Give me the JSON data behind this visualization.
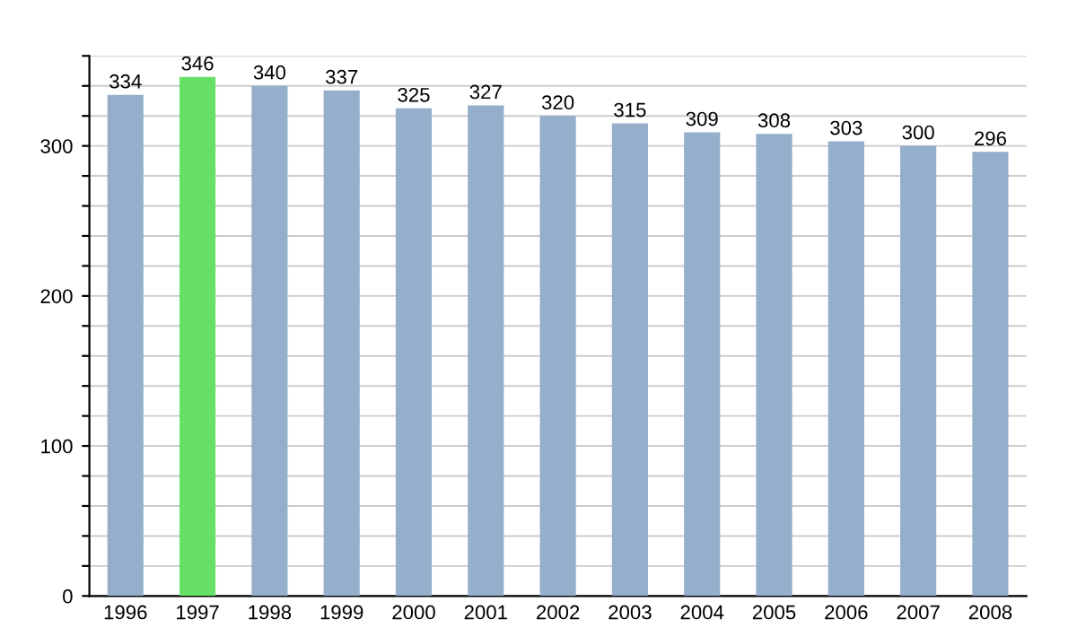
{
  "chart_data": {
    "type": "bar",
    "categories": [
      "1996",
      "1997",
      "1998",
      "1999",
      "2000",
      "2001",
      "2002",
      "2003",
      "2004",
      "2005",
      "2006",
      "2007",
      "2008"
    ],
    "values": [
      334,
      346,
      340,
      337,
      325,
      327,
      320,
      315,
      309,
      308,
      303,
      300,
      296
    ],
    "colors": [
      "#94aecb",
      "#66e066",
      "#94aecb",
      "#94aecb",
      "#94aecb",
      "#94aecb",
      "#94aecb",
      "#94aecb",
      "#94aecb",
      "#94aecb",
      "#94aecb",
      "#94aecb",
      "#94aecb"
    ],
    "ylim": [
      0,
      360
    ],
    "yticks": [
      0,
      {
        "value": 20,
        "label": null
      },
      {
        "value": 40,
        "label": null
      },
      {
        "value": 60,
        "label": null
      },
      {
        "value": 80,
        "label": null
      },
      100,
      {
        "value": 120,
        "label": null
      },
      {
        "value": 140,
        "label": null
      },
      {
        "value": 160,
        "label": null
      },
      {
        "value": 180,
        "label": null
      },
      200,
      {
        "value": 220,
        "label": null
      },
      {
        "value": 240,
        "label": null
      },
      {
        "value": 260,
        "label": null
      },
      {
        "value": 280,
        "label": null
      },
      300,
      {
        "value": 320,
        "label": null
      },
      {
        "value": 340,
        "label": null
      },
      {
        "value": 360,
        "label": null
      }
    ],
    "grid": "y",
    "data_labels": true
  }
}
